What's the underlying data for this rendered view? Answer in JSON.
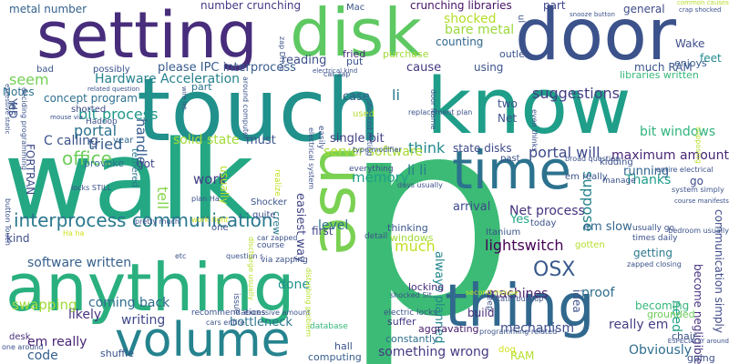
{
  "words": [
    {
      "text": "p",
      "color": "#3bbb75"
    },
    {
      "text": "walk",
      "color": "#24a884"
    },
    {
      "text": "touch",
      "color": "#21918c"
    },
    {
      "text": "know",
      "color": "#1f9e89"
    },
    {
      "text": "door",
      "color": "#3b528b"
    },
    {
      "text": "disk",
      "color": "#5ec962"
    },
    {
      "text": "setting",
      "color": "#472d7b"
    },
    {
      "text": "anything",
      "color": "#2ab07f"
    },
    {
      "text": "thing",
      "color": "#31688e"
    },
    {
      "text": "volume",
      "color": "#25838e"
    },
    {
      "text": "time",
      "color": "#2c728e"
    },
    {
      "text": "use",
      "color": "#7ad151"
    },
    {
      "text": "interprocess communication",
      "color": "#2a788e"
    },
    {
      "text": "lightswitch",
      "color": "#440154"
    },
    {
      "text": "OSX",
      "color": "#38598c"
    },
    {
      "text": "software written",
      "color": "#355f8d"
    },
    {
      "text": "Hardware Acceleration",
      "color": "#26828e"
    },
    {
      "text": "concept program",
      "color": "#2e6f8e"
    },
    {
      "text": "bit process",
      "color": "#1f988b"
    },
    {
      "text": "suggestions",
      "color": "#433e85"
    },
    {
      "text": "memory",
      "color": "#1fa088"
    },
    {
      "text": "office",
      "color": "#6ccd5a"
    },
    {
      "text": "portal",
      "color": "#2c738e"
    },
    {
      "text": "portal will",
      "color": "#3e4989"
    },
    {
      "text": "machines",
      "color": "#481f70"
    },
    {
      "text": "shocked",
      "color": "#b5de2b"
    },
    {
      "text": "think",
      "color": "#23898e"
    },
    {
      "text": "tried",
      "color": "#365c8d"
    },
    {
      "text": "Net process",
      "color": "#46327e"
    },
    {
      "text": "maximum amount",
      "color": "#482576"
    },
    {
      "text": "bit windows",
      "color": "#2fb47c"
    },
    {
      "text": "li li",
      "color": "#287d8e"
    },
    {
      "text": "tell",
      "color": "#84d44b"
    },
    {
      "text": "work",
      "color": "#424086"
    },
    {
      "text": "server software",
      "color": "#a8db34"
    },
    {
      "text": "please IPC interprocess",
      "color": "#375b8d"
    },
    {
      "text": "reading",
      "color": "#3c4f8a"
    },
    {
      "text": "seem",
      "color": "#75d054"
    },
    {
      "text": "number crunching",
      "color": "#443983"
    },
    {
      "text": "crunching libraries",
      "color": "#471365"
    },
    {
      "text": "metal number",
      "color": "#34618d"
    },
    {
      "text": "general",
      "color": "#3e4a89"
    },
    {
      "text": "part",
      "color": "#404588"
    },
    {
      "text": "much RAM",
      "color": "#3a548c"
    },
    {
      "text": "Wake",
      "color": "#3d4d8a"
    },
    {
      "text": "feet",
      "color": "#23888e"
    },
    {
      "text": "enjoys",
      "color": "#375a8c"
    },
    {
      "text": "counting",
      "color": "#31678e"
    },
    {
      "text": "bare metal",
      "color": "#9bd93c"
    },
    {
      "text": "cause",
      "color": "#453781"
    },
    {
      "text": "using",
      "color": "#3b528b"
    },
    {
      "text": "case",
      "color": "#34608d"
    },
    {
      "text": "li",
      "color": "#29798e"
    },
    {
      "text": "solid state",
      "color": "#a2da37"
    },
    {
      "text": "must",
      "color": "#3a548c"
    },
    {
      "text": "single bit",
      "color": "#424086"
    },
    {
      "text": "state disks",
      "color": "#3e4a89"
    },
    {
      "text": "handle",
      "color": "#375b8d"
    },
    {
      "text": "C calling",
      "color": "#3b528b"
    },
    {
      "text": "suppose",
      "color": "#25848e"
    },
    {
      "text": "Thanks",
      "color": "#1e9c89"
    },
    {
      "text": "running",
      "color": "#32658e"
    },
    {
      "text": "level",
      "color": "#2d718e"
    },
    {
      "text": "much",
      "color": "#c2df23"
    },
    {
      "text": "easiest way",
      "color": "#414487"
    },
    {
      "text": "arrival",
      "color": "#3e4989"
    },
    {
      "text": "Yes",
      "color": "#22a785"
    },
    {
      "text": "em slow",
      "color": "#32658e"
    },
    {
      "text": "swapping",
      "color": "#a0da39"
    },
    {
      "text": "likely",
      "color": "#46327e"
    },
    {
      "text": "em really",
      "color": "#482475"
    },
    {
      "text": "code",
      "color": "#355e8d"
    },
    {
      "text": "writing",
      "color": "#3f4788"
    },
    {
      "text": "bottleneck",
      "color": "#2b748e"
    },
    {
      "text": "coming back",
      "color": "#2f6c8e"
    },
    {
      "text": "proof",
      "color": "#2e6e8e"
    },
    {
      "text": "really em",
      "color": "#433e85"
    },
    {
      "text": "need",
      "color": "#1fa187"
    },
    {
      "text": "mechanism",
      "color": "#3d4e8a"
    },
    {
      "text": "done",
      "color": "#20928c"
    },
    {
      "text": "Obviously",
      "color": "#2e6e8e"
    },
    {
      "text": "something wrong",
      "color": "#453882"
    },
    {
      "text": "RAM",
      "color": "#b5de2b"
    },
    {
      "text": "communication simply",
      "color": "#3e4a89"
    },
    {
      "text": "become negligible",
      "color": "#46307e"
    },
    {
      "text": "always planned",
      "color": "#24868e"
    },
    {
      "text": "idea",
      "color": "#3b528b"
    },
    {
      "text": "build",
      "color": "#472a7a"
    },
    {
      "text": "go",
      "color": "#3d4d8a"
    },
    {
      "text": "got",
      "color": "#404588"
    },
    {
      "text": "HD",
      "color": "#3b518b"
    },
    {
      "text": "Yes",
      "color": "#3a538b"
    },
    {
      "text": "Notes",
      "color": "#2d718e"
    },
    {
      "text": "FORTRAN",
      "color": "#3e4a89"
    },
    {
      "text": "thinking",
      "color": "#39568c"
    },
    {
      "text": "windows",
      "color": "#a0da39"
    },
    {
      "text": "locking",
      "color": "#462f7e"
    },
    {
      "text": "suffer",
      "color": "#453882"
    },
    {
      "text": "hall",
      "color": "#3a548c"
    },
    {
      "text": "computing",
      "color": "#365d8d"
    },
    {
      "text": "constantly",
      "color": "#2e6e8e"
    },
    {
      "text": "aggravating",
      "color": "#481b6d"
    },
    {
      "text": "two",
      "color": "#3b528b"
    },
    {
      "text": "Net",
      "color": "#3b528b"
    },
    {
      "text": "kind",
      "color": "#3d4d8a"
    },
    {
      "text": "getting",
      "color": "#2a788e"
    },
    {
      "text": "becoming",
      "color": "#35b779"
    },
    {
      "text": "grounded",
      "color": "#6ccd5a"
    },
    {
      "text": "shuffle",
      "color": "#3a538b"
    },
    {
      "text": "desk",
      "color": "#472f7d"
    },
    {
      "text": "going",
      "color": "#3b528b"
    },
    {
      "text": "chair",
      "color": "#3b528b"
    },
    {
      "text": "dog",
      "color": "#d0e11c"
    },
    {
      "text": "crew",
      "color": "#2a788e"
    },
    {
      "text": "first",
      "color": "#404688"
    },
    {
      "text": "provoke",
      "color": "#2d708e"
    },
    {
      "text": "usually",
      "color": "#b8de29"
    },
    {
      "text": "possibly",
      "color": "#3b528b"
    },
    {
      "text": "shorted",
      "color": "#3e4a89"
    },
    {
      "text": "bad",
      "color": "#3a548c"
    },
    {
      "text": "part",
      "color": "#2c728e"
    },
    {
      "text": "purchase",
      "color": "#a2da37"
    },
    {
      "text": "outlet",
      "color": "#3b528b"
    },
    {
      "text": "fried",
      "color": "#472d7b"
    },
    {
      "text": "put",
      "color": "#3b528b"
    },
    {
      "text": "Mac",
      "color": "#3b528b"
    },
    {
      "text": "year",
      "color": "#31688e"
    },
    {
      "text": "Shocker",
      "color": "#3b528b"
    },
    {
      "text": "quite",
      "color": "#3b528b"
    },
    {
      "text": "one",
      "color": "#3b528b"
    },
    {
      "text": "tethered",
      "color": "#2a788e"
    },
    {
      "text": "question s",
      "color": "#3b528b"
    },
    {
      "text": "plan Ha",
      "color": "#3b528b"
    },
    {
      "text": "pretty much",
      "color": "#3b528b"
    },
    {
      "text": "locks STILL",
      "color": "#3b528b"
    },
    {
      "text": "recommendations",
      "color": "#3b528b"
    },
    {
      "text": "excessive amount",
      "color": "#3b528b"
    },
    {
      "text": "cars entire",
      "color": "#3b528b"
    },
    {
      "text": "via zapping",
      "color": "#3b528b"
    },
    {
      "text": "course",
      "color": "#3b528b"
    },
    {
      "text": "car zapped",
      "color": "#3b528b"
    },
    {
      "text": "database",
      "color": "#35b779"
    },
    {
      "text": "electric locks",
      "color": "#3b528b"
    },
    {
      "text": "programming related",
      "color": "#3b528b"
    },
    {
      "text": "static buildup",
      "color": "#3b528b"
    },
    {
      "text": "em really",
      "color": "#3b528b"
    },
    {
      "text": "one around",
      "color": "#3b528b"
    },
    {
      "text": "etc",
      "color": "#3b528b"
    },
    {
      "text": "libraries written",
      "color": "#35b779"
    },
    {
      "text": "times daily",
      "color": "#3b528b"
    },
    {
      "text": "usually go",
      "color": "#3b528b"
    },
    {
      "text": "zapped closing",
      "color": "#3b528b"
    },
    {
      "text": "system simply",
      "color": "#3b528b"
    },
    {
      "text": "entire electrical",
      "color": "#3b528b"
    },
    {
      "text": "kidding",
      "color": "#3b528b"
    },
    {
      "text": "manage",
      "color": "#3b528b"
    },
    {
      "text": "today",
      "color": "#3b528b"
    },
    {
      "text": "gotten",
      "color": "#b5de2b"
    },
    {
      "text": "Itanium",
      "color": "#3b528b"
    },
    {
      "text": "detail",
      "color": "#3b528b"
    },
    {
      "text": "keep",
      "color": "#3b528b"
    },
    {
      "text": "second mouse",
      "color": "#c2df23"
    },
    {
      "text": "shocked Sit",
      "color": "#3b528b"
    },
    {
      "text": "days usually",
      "color": "#3b528b"
    },
    {
      "text": "everything",
      "color": "#3b528b"
    },
    {
      "text": "type modifier",
      "color": "#3b528b"
    },
    {
      "text": "broad question",
      "color": "#3b528b"
    },
    {
      "text": "replacement plan",
      "color": "#3b528b"
    },
    {
      "text": "snooze button",
      "color": "#3b528b"
    },
    {
      "text": "common causes",
      "color": "#b5de2b"
    },
    {
      "text": "crap shocked",
      "color": "#3b528b"
    },
    {
      "text": "electrical kind",
      "color": "#3b528b"
    },
    {
      "text": "related question",
      "color": "#3b528b"
    },
    {
      "text": "mouse via",
      "color": "#3b528b"
    },
    {
      "text": "wife let",
      "color": "#3b528b"
    },
    {
      "text": "used",
      "color": "#b5de2b"
    },
    {
      "text": "past",
      "color": "#3b528b"
    },
    {
      "text": "Hadoop",
      "color": "#3b528b"
    },
    {
      "text": "work right",
      "color": "#d0e11c"
    },
    {
      "text": "Ha ha",
      "color": "#d0e11c"
    },
    {
      "text": "around computer",
      "color": "#3b528b"
    },
    {
      "text": "bedroom usually",
      "color": "#3b528b"
    },
    {
      "text": "ESPECIALLY around",
      "color": "#3b528b"
    },
    {
      "text": "course manifests",
      "color": "#3b528b"
    },
    {
      "text": "button Touch",
      "color": "#3b528b"
    },
    {
      "text": "issue",
      "color": "#3b528b"
    },
    {
      "text": "realize",
      "color": "#c2df23"
    },
    {
      "text": "electrical system",
      "color": "#3b528b"
    },
    {
      "text": "shocked hitting",
      "color": "#3b528b"
    },
    {
      "text": "door frame",
      "color": "#3b528b"
    },
    {
      "text": "even thinks",
      "color": "#3b528b"
    },
    {
      "text": "zap Drive",
      "color": "#3b528b"
    },
    {
      "text": "car zap",
      "color": "#3b528b"
    },
    {
      "text": "ul",
      "color": "#3b528b"
    },
    {
      "text": "easily",
      "color": "#3b528b"
    },
    {
      "text": "discharge usually",
      "color": "#b5de2b"
    },
    {
      "text": "excessive static",
      "color": "#3b528b"
    },
    {
      "text": "supposing",
      "color": "#b5de2b"
    },
    {
      "text": "disturbing problem",
      "color": "#b5de2b"
    },
    {
      "text": "deciding programming",
      "color": "#3b528b"
    }
  ]
}
